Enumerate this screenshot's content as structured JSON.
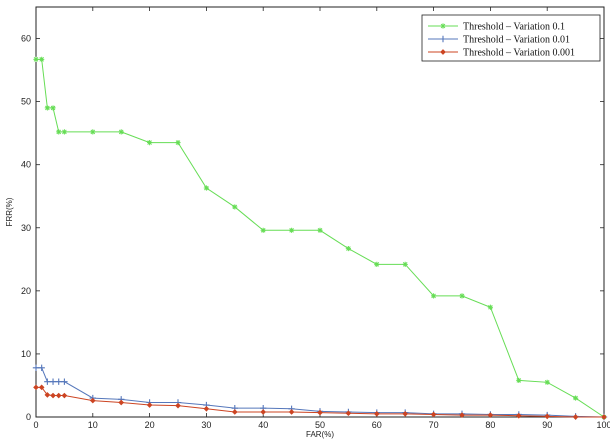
{
  "chart_data": {
    "type": "line",
    "title": "",
    "xlabel": "FAR(%)",
    "ylabel": "FRR(%)",
    "xlim": [
      0,
      100
    ],
    "ylim": [
      0,
      65
    ],
    "xticks": [
      0,
      10,
      20,
      30,
      40,
      50,
      60,
      70,
      80,
      90,
      100
    ],
    "yticks": [
      0,
      10,
      20,
      30,
      40,
      50,
      60
    ],
    "grid": false,
    "legend_position": "top-right",
    "series": [
      {
        "name": "Threshold – Variation 0.1",
        "color": "#66dd55",
        "marker": "star",
        "x": [
          0,
          1,
          2,
          3,
          4,
          5,
          10,
          15,
          20,
          25,
          30,
          35,
          40,
          45,
          50,
          55,
          60,
          65,
          70,
          75,
          80,
          85,
          90,
          95,
          100
        ],
        "y": [
          56.7,
          56.7,
          49,
          49,
          45.2,
          45.2,
          45.2,
          45.2,
          43.5,
          43.5,
          36.3,
          33.3,
          29.6,
          29.6,
          29.6,
          26.7,
          24.2,
          24.2,
          19.2,
          19.2,
          17.4,
          5.8,
          5.5,
          3,
          0
        ]
      },
      {
        "name": "Threshold – Variation 0.01",
        "color": "#5577bb",
        "marker": "plus",
        "x": [
          0,
          1,
          2,
          3,
          4,
          5,
          10,
          15,
          20,
          25,
          30,
          35,
          40,
          45,
          50,
          55,
          60,
          65,
          70,
          75,
          80,
          85,
          90,
          95,
          100
        ],
        "y": [
          7.8,
          7.8,
          5.6,
          5.6,
          5.6,
          5.6,
          3.0,
          2.8,
          2.3,
          2.3,
          1.9,
          1.4,
          1.4,
          1.3,
          0.9,
          0.8,
          0.7,
          0.7,
          0.5,
          0.5,
          0.4,
          0.4,
          0.3,
          0.1,
          0
        ]
      },
      {
        "name": "Threshold – Variation 0.001",
        "color": "#cc4422",
        "marker": "diamond",
        "x": [
          0,
          1,
          2,
          3,
          4,
          5,
          10,
          15,
          20,
          25,
          30,
          35,
          40,
          45,
          50,
          55,
          60,
          65,
          70,
          75,
          80,
          85,
          90,
          95,
          100
        ],
        "y": [
          4.7,
          4.7,
          3.5,
          3.4,
          3.4,
          3.4,
          2.6,
          2.3,
          1.9,
          1.8,
          1.3,
          0.8,
          0.8,
          0.8,
          0.7,
          0.6,
          0.5,
          0.5,
          0.4,
          0.3,
          0.3,
          0.2,
          0.1,
          0.0,
          0
        ]
      }
    ]
  }
}
